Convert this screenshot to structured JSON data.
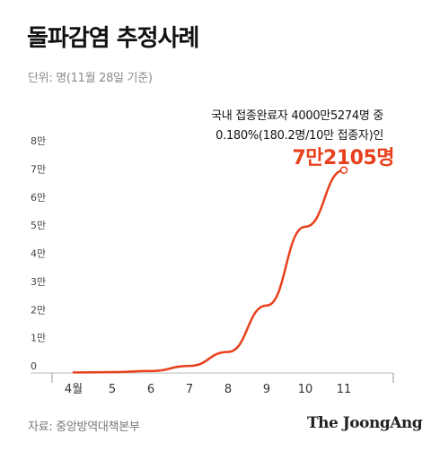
{
  "header": {
    "title": "돌파감염 추정사례",
    "unit": "단위: 명(11월 28일 기준)"
  },
  "footer": {
    "source": "자료: 중앙방역대책본부",
    "logo": "The JoongAng"
  },
  "annotation": {
    "line1": "국내 접종완료자 4000만5274명 중",
    "line2": "0.180%(180.2명/10만 접종자)인",
    "highlight": "7만2105명"
  },
  "colors": {
    "line": "#e8401c",
    "axis": "#999999",
    "baseline": "#bbbbbb"
  },
  "chart_data": {
    "type": "line",
    "categories": [
      "4월",
      "5",
      "6",
      "7",
      "8",
      "9",
      "10",
      "11"
    ],
    "values": [
      200,
      300,
      700,
      2500,
      7500,
      24000,
      52000,
      72105
    ],
    "ylim": [
      0,
      80000
    ],
    "yticks": [
      {
        "value": 0,
        "label": "0"
      },
      {
        "value": 10000,
        "label": "1만"
      },
      {
        "value": 20000,
        "label": "2만"
      },
      {
        "value": 30000,
        "label": "3만"
      },
      {
        "value": 40000,
        "label": "4만"
      },
      {
        "value": 50000,
        "label": "5만"
      },
      {
        "value": 60000,
        "label": "6만"
      },
      {
        "value": 70000,
        "label": "7만"
      },
      {
        "value": 80000,
        "label": "8만"
      }
    ],
    "grid": false,
    "legend": "none"
  }
}
